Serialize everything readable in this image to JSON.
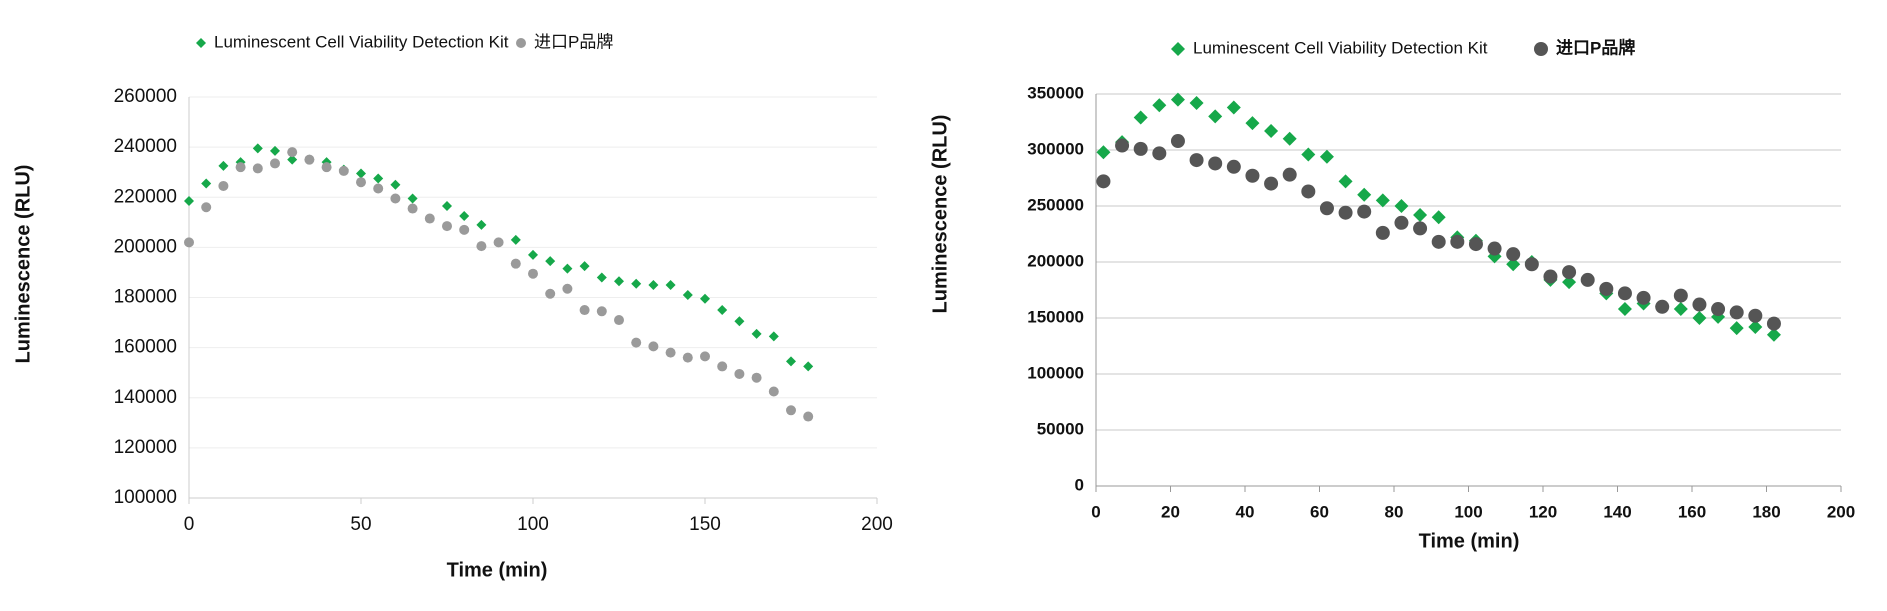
{
  "chart_data": [
    {
      "type": "scatter",
      "x_label": "Time (min)",
      "y_label": "Luminescence (RLU)",
      "x": [
        0,
        5,
        10,
        15,
        20,
        25,
        30,
        35,
        40,
        45,
        50,
        55,
        60,
        65,
        70,
        75,
        80,
        85,
        90,
        95,
        100,
        105,
        110,
        115,
        120,
        125,
        130,
        135,
        140,
        145,
        150,
        155,
        160,
        165,
        170,
        175,
        180
      ],
      "series": [
        {
          "name": "Luminescent Cell Viability Detection Kit",
          "color": "#16a84a",
          "marker": "diamond",
          "values": [
            218500,
            225500,
            232500,
            234000,
            239500,
            238500,
            235000,
            235000,
            234000,
            231000,
            229500,
            227500,
            225000,
            219500,
            null,
            216500,
            212500,
            209000,
            null,
            203000,
            197000,
            194500,
            191500,
            192500,
            188000,
            186500,
            185500,
            185000,
            185000,
            181000,
            179500,
            175000,
            170500,
            165500,
            164500,
            154500,
            152500
          ]
        },
        {
          "name": "进口P品牌",
          "color": "#9a9a9a",
          "marker": "circle",
          "values": [
            202000,
            216000,
            224500,
            232000,
            231500,
            233500,
            238000,
            235000,
            232000,
            230500,
            226000,
            223500,
            219500,
            215500,
            211500,
            208500,
            207000,
            200500,
            202000,
            193500,
            189500,
            181500,
            183500,
            175000,
            174500,
            171000,
            162000,
            160500,
            158000,
            156000,
            156500,
            152500,
            149500,
            148000,
            142500,
            135000,
            132500
          ]
        }
      ],
      "xlim": [
        0,
        200
      ],
      "xticks": [
        0,
        50,
        100,
        150,
        200
      ],
      "ylim": [
        100000,
        260000
      ],
      "yticks": [
        100000,
        120000,
        140000,
        160000,
        180000,
        200000,
        220000,
        240000,
        260000
      ],
      "grid": true
    },
    {
      "type": "scatter",
      "x_label": "Time  (min)",
      "y_label": "Luminescence  (RLU)",
      "x": [
        2,
        7,
        12,
        17,
        22,
        27,
        32,
        37,
        42,
        47,
        52,
        57,
        62,
        67,
        72,
        77,
        82,
        87,
        92,
        97,
        102,
        107,
        112,
        117,
        122,
        127,
        132,
        137,
        142,
        147,
        152,
        157,
        162,
        167,
        172,
        177,
        182
      ],
      "series": [
        {
          "name": "Luminescent Cell Viability Detection Kit",
          "color": "#16a84a",
          "marker": "diamond",
          "values": [
            298000,
            307000,
            329000,
            340000,
            345000,
            342000,
            330000,
            338000,
            324000,
            317000,
            310000,
            296000,
            294000,
            272000,
            260000,
            255000,
            250000,
            242000,
            240000,
            222000,
            219000,
            205000,
            198000,
            200000,
            184000,
            182000,
            null,
            172000,
            158000,
            163000,
            160000,
            158000,
            150000,
            151000,
            141000,
            142000,
            135000
          ]
        },
        {
          "name": "进口P品牌",
          "color": "#555555",
          "marker": "circle",
          "values": [
            272000,
            304000,
            301000,
            297000,
            308000,
            291000,
            288000,
            285000,
            277000,
            270000,
            278000,
            263000,
            248000,
            244000,
            245000,
            226000,
            235000,
            230000,
            218000,
            218000,
            216000,
            212000,
            207000,
            198000,
            187000,
            191000,
            184000,
            176000,
            172000,
            168000,
            160000,
            170000,
            162000,
            158000,
            155000,
            152000,
            145000
          ]
        }
      ],
      "xlim": [
        0,
        200
      ],
      "xticks": [
        0,
        20,
        40,
        60,
        80,
        100,
        120,
        140,
        160,
        180,
        200
      ],
      "ylim": [
        0,
        350000
      ],
      "yticks": [
        0,
        50000,
        100000,
        150000,
        200000,
        250000,
        300000,
        350000
      ],
      "grid": true
    }
  ]
}
